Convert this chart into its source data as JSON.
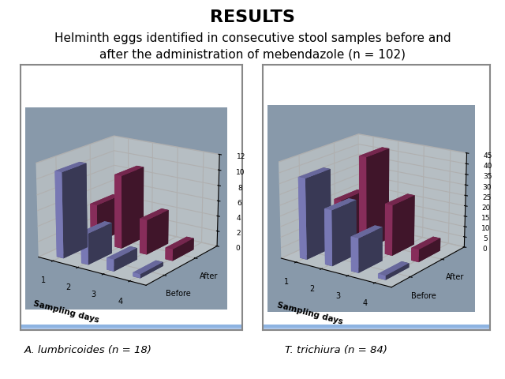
{
  "title": "RESULTS",
  "subtitle": "Helminth eggs identified in consecutive stool samples before and\nafter the administration of mebendazole (n = 102)",
  "title_fontsize": 16,
  "subtitle_fontsize": 11,
  "background_color": "#ffffff",
  "chart1": {
    "label": "A. lumbricoides (n = 18)",
    "sampling_days": [
      1,
      2,
      3,
      4
    ],
    "before": [
      11,
      4,
      1.5,
      0.5
    ],
    "after": [
      5,
      9.5,
      4.5,
      1.5
    ],
    "ylim": [
      0,
      12
    ],
    "yticks": [
      0,
      2,
      4,
      6,
      8,
      10,
      12
    ],
    "xlabel": "Sampling days"
  },
  "chart2": {
    "label": "T. trichiura (n = 84)",
    "sampling_days": [
      1,
      2,
      3,
      4
    ],
    "before": [
      38,
      26,
      16,
      2
    ],
    "after": [
      21,
      44,
      24,
      6
    ],
    "ylim": [
      0,
      45
    ],
    "yticks": [
      0,
      5,
      10,
      15,
      20,
      25,
      30,
      35,
      40,
      45
    ],
    "xlabel": "Sampling days"
  },
  "bar_color_before": "#8888CC",
  "bar_color_after": "#993366",
  "legend_after": "After",
  "legend_before": "Before",
  "panel_bg": "#5599CC",
  "panel_border": "#888888",
  "pane_back": "#E0E0D8",
  "pane_side": "#BEBEC0",
  "floor_color": "#A0A080",
  "grid_color": "#CCCCCC"
}
